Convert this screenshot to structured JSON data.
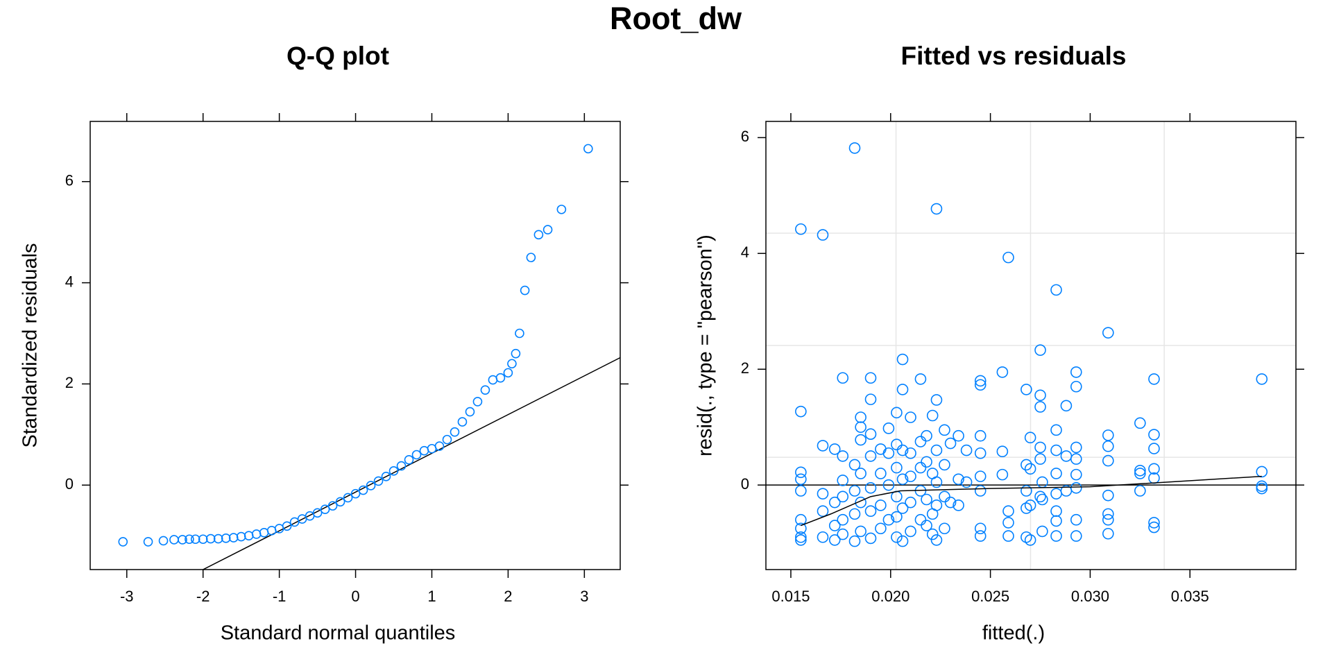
{
  "title": "Root_dw",
  "chart_data": [
    {
      "type": "scatter",
      "title": "Q-Q plot",
      "xlabel": "Standard normal quantiles",
      "ylabel": "Standardized residuals",
      "color": "#0080ff",
      "xlim": [
        -3.48,
        3.47
      ],
      "ylim": [
        -1.67,
        7.19
      ],
      "xticks": [
        -3,
        -2,
        -1,
        0,
        1,
        2,
        3
      ],
      "yticks": [
        0,
        2,
        4,
        6
      ],
      "reference_line": {
        "intercept": -0.138,
        "slope": 0.766
      },
      "x": [
        -3.05,
        -2.72,
        -2.52,
        -2.38,
        -2.27,
        -2.18,
        -2.1,
        -2.0,
        -1.9,
        -1.8,
        -1.7,
        -1.6,
        -1.5,
        -1.4,
        -1.3,
        -1.2,
        -1.1,
        -1.0,
        -0.9,
        -0.8,
        -0.7,
        -0.6,
        -0.5,
        -0.4,
        -0.3,
        -0.2,
        -0.1,
        0,
        0.1,
        0.2,
        0.3,
        0.4,
        0.5,
        0.6,
        0.7,
        0.8,
        0.9,
        1.0,
        1.1,
        1.2,
        1.3,
        1.4,
        1.5,
        1.6,
        1.7,
        1.8,
        1.9,
        2.0,
        2.05,
        2.1,
        2.15,
        2.22,
        2.3,
        2.4,
        2.52,
        2.7,
        3.05
      ],
      "y": [
        -1.12,
        -1.12,
        -1.1,
        -1.08,
        -1.08,
        -1.07,
        -1.07,
        -1.07,
        -1.06,
        -1.06,
        -1.05,
        -1.04,
        -1.02,
        -1.0,
        -0.97,
        -0.94,
        -0.9,
        -0.86,
        -0.81,
        -0.73,
        -0.67,
        -0.61,
        -0.55,
        -0.48,
        -0.41,
        -0.33,
        -0.25,
        -0.17,
        -0.1,
        -0.01,
        0.08,
        0.17,
        0.28,
        0.38,
        0.5,
        0.6,
        0.68,
        0.72,
        0.77,
        0.9,
        1.05,
        1.25,
        1.45,
        1.65,
        1.88,
        2.08,
        2.12,
        2.22,
        2.4,
        2.6,
        3.0,
        3.85,
        4.5,
        4.95,
        5.05,
        5.45,
        6.65
      ]
    },
    {
      "type": "scatter",
      "title": "Fitted vs residuals",
      "xlabel": "fitted(.)",
      "ylabel": "resid(., type = \"pearson\")",
      "color": "#0080ff",
      "xlim": [
        0.01375,
        0.04031
      ],
      "ylim": [
        -1.46,
        6.28
      ],
      "xticks": [
        0.015,
        {
          "value": 0.02,
          "label": "0.020"
        },
        0.025,
        {
          "value": 0.03,
          "label": "0.030"
        },
        0.035
      ],
      "yticks": [
        0,
        2,
        4,
        6
      ],
      "grid_lines": {
        "x": [
          0.02027,
          0.02701,
          0.03371
        ],
        "y": [
          4.35,
          2.41,
          0.48
        ]
      },
      "hline": 0,
      "smooth": {
        "x": [
          0.0155,
          0.017,
          0.019,
          0.0205,
          0.025,
          0.03,
          0.0386
        ],
        "y": [
          -0.7,
          -0.5,
          -0.2,
          -0.1,
          -0.06,
          -0.03,
          0.15
        ]
      },
      "x": [
        0.0155,
        0.0155,
        0.0155,
        0.0155,
        0.0155,
        0.0155,
        0.0155,
        0.0155,
        0.0155,
        0.0166,
        0.0166,
        0.0166,
        0.0166,
        0.0166,
        0.0172,
        0.0172,
        0.0172,
        0.0172,
        0.0176,
        0.0176,
        0.0176,
        0.0176,
        0.0176,
        0.0176,
        0.0182,
        0.0182,
        0.0182,
        0.0182,
        0.0182,
        0.0185,
        0.0185,
        0.0185,
        0.0185,
        0.0185,
        0.0185,
        0.019,
        0.019,
        0.019,
        0.019,
        0.019,
        0.019,
        0.019,
        0.0195,
        0.0195,
        0.0195,
        0.0195,
        0.0199,
        0.0199,
        0.0199,
        0.0199,
        0.0203,
        0.0203,
        0.0203,
        0.0203,
        0.0203,
        0.0203,
        0.0206,
        0.0206,
        0.0206,
        0.0206,
        0.0206,
        0.0206,
        0.021,
        0.021,
        0.021,
        0.021,
        0.021,
        0.0215,
        0.0215,
        0.0215,
        0.0215,
        0.0215,
        0.0218,
        0.0218,
        0.0218,
        0.0218,
        0.0221,
        0.0221,
        0.0221,
        0.0221,
        0.0223,
        0.0223,
        0.0223,
        0.0223,
        0.0223,
        0.0223,
        0.0227,
        0.0227,
        0.0227,
        0.0227,
        0.023,
        0.023,
        0.0234,
        0.0234,
        0.0234,
        0.0238,
        0.0238,
        0.0245,
        0.0245,
        0.0245,
        0.0245,
        0.0245,
        0.0245,
        0.0245,
        0.0245,
        0.0256,
        0.0256,
        0.0256,
        0.0259,
        0.0259,
        0.0259,
        0.0259,
        0.0268,
        0.0268,
        0.0268,
        0.0268,
        0.0268,
        0.027,
        0.027,
        0.027,
        0.027,
        0.0275,
        0.0275,
        0.0275,
        0.0275,
        0.0275,
        0.0275,
        0.0276,
        0.0276,
        0.0276,
        0.0283,
        0.0283,
        0.0283,
        0.0283,
        0.0283,
        0.0283,
        0.0283,
        0.0283,
        0.0288,
        0.0288,
        0.0288,
        0.0293,
        0.0293,
        0.0293,
        0.0293,
        0.0293,
        0.0293,
        0.0293,
        0.0293,
        0.0309,
        0.0309,
        0.0309,
        0.0309,
        0.0309,
        0.0309,
        0.0309,
        0.0309,
        0.0325,
        0.0325,
        0.0325,
        0.0325,
        0.0332,
        0.0332,
        0.0332,
        0.0332,
        0.0332,
        0.0332,
        0.0332,
        0.0386,
        0.0386,
        0.0386,
        0.0386
      ],
      "y": [
        4.42,
        1.27,
        0.1,
        -0.1,
        -0.75,
        -0.9,
        -0.95,
        0.22,
        -0.6,
        4.32,
        0.68,
        -0.15,
        -0.45,
        -0.9,
        0.62,
        -0.3,
        -0.7,
        -0.95,
        1.85,
        0.5,
        0.08,
        -0.2,
        -0.6,
        -0.85,
        5.82,
        0.35,
        -0.1,
        -0.5,
        -0.97,
        1.17,
        1.0,
        0.78,
        0.2,
        -0.3,
        -0.8,
        1.85,
        1.48,
        0.88,
        0.5,
        -0.05,
        -0.45,
        -0.92,
        0.62,
        0.2,
        -0.35,
        -0.75,
        0.98,
        0.55,
        0.0,
        -0.6,
        1.25,
        0.7,
        0.3,
        -0.2,
        -0.55,
        -0.9,
        2.17,
        1.65,
        0.6,
        0.1,
        -0.4,
        -0.97,
        1.17,
        0.55,
        0.15,
        -0.3,
        -0.8,
        1.83,
        0.75,
        0.3,
        -0.1,
        -0.6,
        0.85,
        0.4,
        -0.25,
        -0.7,
        1.2,
        0.2,
        -0.5,
        -0.85,
        4.77,
        1.47,
        0.6,
        0.05,
        -0.35,
        -0.95,
        0.95,
        0.35,
        -0.2,
        -0.75,
        0.72,
        -0.3,
        0.85,
        0.1,
        -0.35,
        0.6,
        0.05,
        1.8,
        1.73,
        0.85,
        0.55,
        0.15,
        -0.1,
        -0.75,
        -0.88,
        1.95,
        0.58,
        0.18,
        3.93,
        -0.45,
        -0.65,
        -0.88,
        1.65,
        0.35,
        -0.1,
        -0.4,
        -0.9,
        0.82,
        0.28,
        -0.35,
        -0.95,
        2.33,
        1.55,
        1.35,
        0.65,
        0.45,
        -0.2,
        0.05,
        -0.25,
        -0.8,
        3.37,
        0.95,
        0.6,
        0.2,
        -0.15,
        -0.45,
        -0.62,
        -0.88,
        1.37,
        0.5,
        -0.1,
        1.95,
        1.7,
        0.65,
        0.45,
        0.18,
        -0.05,
        -0.6,
        -0.88,
        2.63,
        0.86,
        0.67,
        0.42,
        -0.18,
        -0.5,
        -0.6,
        -0.84,
        1.07,
        0.25,
        0.2,
        -0.1,
        1.83,
        0.87,
        0.63,
        0.28,
        0.12,
        -0.65,
        -0.73,
        1.83,
        0.23,
        -0.02,
        -0.06
      ]
    }
  ]
}
